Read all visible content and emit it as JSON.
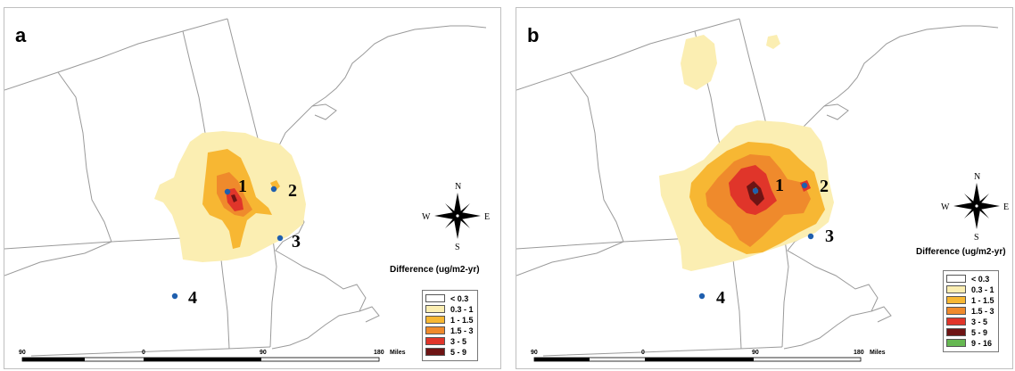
{
  "panels": [
    {
      "letter": "a",
      "sites": [
        "1",
        "2",
        "3",
        "4"
      ],
      "compass": {
        "n": "N",
        "s": "S",
        "e": "E",
        "w": "W"
      },
      "legend": {
        "title": "Difference (ug/m2-yr)",
        "classes": [
          {
            "label": "< 0.3",
            "color": "#ffffff"
          },
          {
            "label": "0.3 - 1",
            "color": "#fbeeb2"
          },
          {
            "label": "1 - 1.5",
            "color": "#f7b733"
          },
          {
            "label": "1.5 - 3",
            "color": "#ef8a2c"
          },
          {
            "label": "3 - 5",
            "color": "#e0352a"
          },
          {
            "label": "5 - 9",
            "color": "#6e1414"
          }
        ]
      },
      "scale": {
        "ticks": [
          "90",
          "0",
          "90",
          "180"
        ],
        "unit": "Miles"
      }
    },
    {
      "letter": "b",
      "sites": [
        "1",
        "2",
        "3",
        "4"
      ],
      "compass": {
        "n": "N",
        "s": "S",
        "e": "E",
        "w": "W"
      },
      "legend": {
        "title": "Difference (ug/m2-yr)",
        "classes": [
          {
            "label": "< 0.3",
            "color": "#ffffff"
          },
          {
            "label": "0.3 - 1",
            "color": "#fbeeb2"
          },
          {
            "label": "1 - 1.5",
            "color": "#f7b733"
          },
          {
            "label": "1.5 - 3",
            "color": "#ef8a2c"
          },
          {
            "label": "3 - 5",
            "color": "#e0352a"
          },
          {
            "label": "5 - 9",
            "color": "#6e1414"
          },
          {
            "label": "9 - 16",
            "color": "#66b852"
          }
        ]
      },
      "scale": {
        "ticks": [
          "90",
          "0",
          "90",
          "180"
        ],
        "unit": "Miles"
      }
    }
  ],
  "colors": {
    "site_marker": "#1f5fae",
    "boundary": "#9a9a9a"
  }
}
